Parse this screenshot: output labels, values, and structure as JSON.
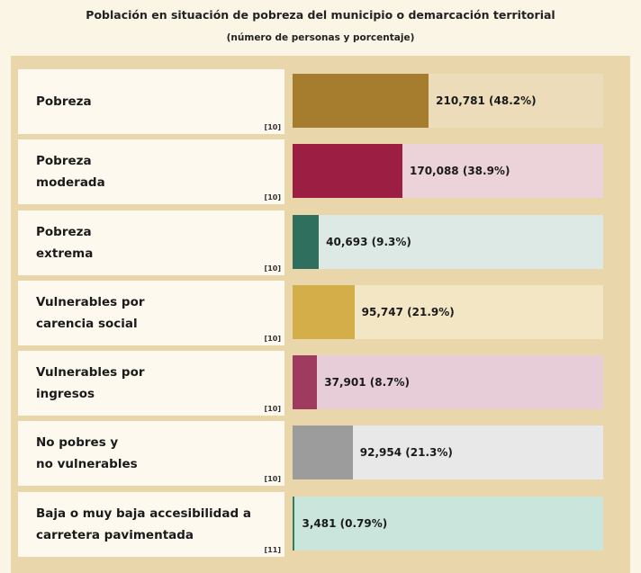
{
  "chart_data": {
    "type": "bar",
    "orientation": "horizontal",
    "title": "Población en situación de pobreza del municipio o demarcación territorial",
    "subtitle": "(número de personas y porcentaje)",
    "categories": [
      "Pobreza",
      "Pobreza\nmoderada",
      "Pobreza\nextrema",
      "Vulnerables por\ncarencia social",
      "Vulnerables por\ningresos",
      "No pobres y\nno vulnerables",
      "Baja o muy baja accesibilidad a\ncarretera pavimentada"
    ],
    "notes": [
      "[10]",
      "[10]",
      "[10]",
      "[10]",
      "[10]",
      "[10]",
      "[11]"
    ],
    "values": [
      48.2,
      38.9,
      9.3,
      21.9,
      8.7,
      21.3,
      0.79
    ],
    "value_labels": [
      "210,781 (48.2%)",
      "170,088 (38.9%)",
      "40,693 (9.3%)",
      "95,747 (21.9%)",
      "37,901 (8.7%)",
      "92,954 (21.3%)",
      "3,481 (0.79%)"
    ],
    "colors": [
      "#a67c2e",
      "#9c1f43",
      "#2e6f5e",
      "#d4ae48",
      "#9e3b5e",
      "#9c9c9c",
      "#2e7f5e"
    ],
    "track_colors": [
      "#ecdcb9",
      "#ecd3d9",
      "#dde9e5",
      "#f3e6c4",
      "#e7cdd8",
      "#e8e8e8",
      "#c9e5dc"
    ],
    "xlim": [
      0,
      110
    ]
  }
}
